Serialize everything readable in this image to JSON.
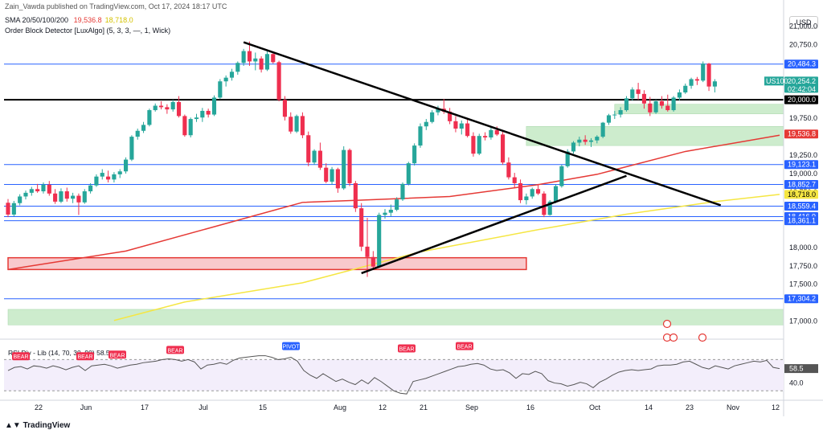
{
  "header": {
    "publisher": "Zain_Vawda published on TradingView.com, Oct 17, 2024 18:17 UTC",
    "sma_label": "SMA 20/50/100/200",
    "sma_value_1": "19,536.8",
    "sma_value_2": "18,718.0",
    "indicator_label": "Order Block Detector [LuxAlgo] (5, 3, 3, —, 1, Wick)"
  },
  "currency": "USD",
  "symbol": "US100",
  "countdown": "02:42:04",
  "footer": "TradingView",
  "colors": {
    "up": "#26a69a",
    "down": "#ef2f4f",
    "sma_red": "#e53935",
    "sma_yellow": "#f5e642",
    "level_blue": "#2962ff",
    "zone_green": "#cdeccd",
    "zone_red": "#f8c9cc",
    "rsi_line": "#555555"
  },
  "chart_data": {
    "type": "candlestick",
    "y_ticks": [
      "21,000.0",
      "20,750.0",
      "20,000.0",
      "19,750.0",
      "19,250.0",
      "19,000.0",
      "18,750.0",
      "18,000.0",
      "17,750.0",
      "17,500.0",
      "17,000.0"
    ],
    "x_ticks": [
      "22",
      "Jun",
      "17",
      "Jul",
      "15",
      "Aug",
      "12",
      "21",
      "Sep",
      "16",
      "Oct",
      "14",
      "23",
      "Nov",
      "12"
    ],
    "price_labels": [
      {
        "text": "20,484.3",
        "value": 20484.3,
        "kind": "level"
      },
      {
        "text": "20,254.2",
        "value": 20254.2,
        "kind": "last"
      },
      {
        "text": "20,000.0",
        "value": 20000.0,
        "kind": "black"
      },
      {
        "text": "19,536.8",
        "value": 19536.8,
        "kind": "sma_red"
      },
      {
        "text": "19,123.1",
        "value": 19123.1,
        "kind": "level"
      },
      {
        "text": "18,852.7",
        "value": 18852.7,
        "kind": "level"
      },
      {
        "text": "18,718.0",
        "value": 18718.0,
        "kind": "sma_yellow"
      },
      {
        "text": "18,559.4",
        "value": 18559.4,
        "kind": "level"
      },
      {
        "text": "18,416.9",
        "value": 18416.9,
        "kind": "level"
      },
      {
        "text": "18,361.1",
        "value": 18361.1,
        "kind": "level"
      },
      {
        "text": "17,304.2",
        "value": 17304.2,
        "kind": "level"
      }
    ],
    "horizontal_levels": [
      20484.3,
      19123.1,
      18852.7,
      18559.4,
      18416.9,
      18361.1,
      17304.2
    ],
    "black_level": 20000.0,
    "zones": [
      {
        "type": "green",
        "from_index": 103,
        "top": 19940,
        "bottom": 19810
      },
      {
        "type": "green",
        "from_index": 88,
        "top": 19640,
        "bottom": 19380
      },
      {
        "type": "red",
        "from_index": 0,
        "top": 17860,
        "bottom": 17700
      },
      {
        "type": "green",
        "from_index": 0,
        "top": 17160,
        "bottom": 16950
      }
    ],
    "trendlines": [
      {
        "i1": 40,
        "v1": 20780,
        "i2": 121,
        "v2": 18570
      },
      {
        "i1": 60,
        "v1": 17650,
        "i2": 105,
        "v2": 18970
      }
    ],
    "candles": [
      [
        18605,
        18655,
        18410,
        18445
      ],
      [
        18445,
        18630,
        18420,
        18600
      ],
      [
        18600,
        18720,
        18570,
        18690
      ],
      [
        18690,
        18770,
        18650,
        18740
      ],
      [
        18740,
        18820,
        18700,
        18790
      ],
      [
        18790,
        18860,
        18740,
        18760
      ],
      [
        18760,
        18880,
        18730,
        18850
      ],
      [
        18850,
        18900,
        18700,
        18730
      ],
      [
        18730,
        18790,
        18590,
        18620
      ],
      [
        18620,
        18800,
        18600,
        18760
      ],
      [
        18760,
        18810,
        18620,
        18660
      ],
      [
        18660,
        18740,
        18600,
        18700
      ],
      [
        18700,
        18730,
        18440,
        18610
      ],
      [
        18610,
        18790,
        18590,
        18760
      ],
      [
        18760,
        18870,
        18730,
        18840
      ],
      [
        18840,
        18990,
        18820,
        18960
      ],
      [
        18960,
        19060,
        18920,
        19010
      ],
      [
        18960,
        19040,
        18880,
        18920
      ],
      [
        18920,
        19020,
        18880,
        18990
      ],
      [
        18990,
        19060,
        18940,
        19030
      ],
      [
        19030,
        19220,
        19000,
        19190
      ],
      [
        19190,
        19520,
        19170,
        19500
      ],
      [
        19500,
        19610,
        19460,
        19580
      ],
      [
        19580,
        19700,
        19550,
        19660
      ],
      [
        19660,
        19880,
        19640,
        19860
      ],
      [
        19860,
        19950,
        19840,
        19920
      ],
      [
        19920,
        19980,
        19870,
        19900
      ],
      [
        19900,
        19940,
        19810,
        19870
      ],
      [
        19870,
        20000,
        19840,
        19970
      ],
      [
        19970,
        20050,
        19760,
        19780
      ],
      [
        19780,
        19800,
        19500,
        19520
      ],
      [
        19520,
        19760,
        19490,
        19740
      ],
      [
        19740,
        19810,
        19700,
        19760
      ],
      [
        19760,
        19890,
        19700,
        19850
      ],
      [
        19850,
        19880,
        19760,
        19800
      ],
      [
        19800,
        20060,
        19780,
        20030
      ],
      [
        20030,
        20280,
        20010,
        20250
      ],
      [
        20250,
        20330,
        20180,
        20300
      ],
      [
        20300,
        20420,
        20260,
        20380
      ],
      [
        20380,
        20520,
        20340,
        20500
      ],
      [
        20500,
        20690,
        20460,
        20660
      ],
      [
        20660,
        20790,
        20460,
        20520
      ],
      [
        20520,
        20640,
        20400,
        20560
      ],
      [
        20560,
        20590,
        20370,
        20410
      ],
      [
        20410,
        20660,
        20390,
        20620
      ],
      [
        20620,
        20630,
        20490,
        20510
      ],
      [
        20510,
        20530,
        19980,
        20000
      ],
      [
        20000,
        20050,
        19720,
        19770
      ],
      [
        19770,
        19830,
        19540,
        19570
      ],
      [
        19570,
        19800,
        19550,
        19780
      ],
      [
        19780,
        19830,
        19480,
        19520
      ],
      [
        19520,
        19570,
        19100,
        19150
      ],
      [
        19150,
        19330,
        19120,
        19310
      ],
      [
        19310,
        19420,
        19050,
        19080
      ],
      [
        19080,
        19140,
        18870,
        18890
      ],
      [
        18890,
        19090,
        18850,
        19060
      ],
      [
        19060,
        19080,
        18740,
        18800
      ],
      [
        18800,
        19370,
        18780,
        19320
      ],
      [
        19320,
        19340,
        18830,
        18870
      ],
      [
        18870,
        18900,
        18480,
        18530
      ],
      [
        18530,
        18600,
        17950,
        18010
      ],
      [
        18010,
        18400,
        17600,
        17870
      ],
      [
        17870,
        17950,
        17700,
        17740
      ],
      [
        17740,
        18470,
        17720,
        18440
      ],
      [
        18440,
        18520,
        18390,
        18470
      ],
      [
        18470,
        18580,
        18420,
        18510
      ],
      [
        18510,
        18680,
        18490,
        18650
      ],
      [
        18650,
        18880,
        18630,
        18860
      ],
      [
        18860,
        19160,
        18840,
        19140
      ],
      [
        19140,
        19410,
        19110,
        19380
      ],
      [
        19380,
        19680,
        19350,
        19640
      ],
      [
        19640,
        19740,
        19590,
        19700
      ],
      [
        19700,
        19860,
        19680,
        19830
      ],
      [
        19830,
        19920,
        19790,
        19880
      ],
      [
        19880,
        20010,
        19810,
        19840
      ],
      [
        19840,
        19890,
        19670,
        19710
      ],
      [
        19710,
        19780,
        19560,
        19610
      ],
      [
        19610,
        19720,
        19530,
        19680
      ],
      [
        19680,
        19750,
        19490,
        19510
      ],
      [
        19510,
        19560,
        19230,
        19270
      ],
      [
        19270,
        19540,
        19250,
        19510
      ],
      [
        19510,
        19560,
        19450,
        19490
      ],
      [
        19490,
        19620,
        19460,
        19590
      ],
      [
        19590,
        19640,
        19510,
        19530
      ],
      [
        19530,
        19570,
        19120,
        19150
      ],
      [
        19150,
        19220,
        18920,
        18950
      ],
      [
        18950,
        19010,
        18800,
        18870
      ],
      [
        18870,
        18920,
        18600,
        18640
      ],
      [
        18640,
        18730,
        18580,
        18690
      ],
      [
        18690,
        18810,
        18660,
        18790
      ],
      [
        18790,
        18860,
        18710,
        18730
      ],
      [
        18730,
        18760,
        18410,
        18440
      ],
      [
        18440,
        18640,
        18430,
        18620
      ],
      [
        18620,
        18850,
        18600,
        18830
      ],
      [
        18830,
        19120,
        18810,
        19100
      ],
      [
        19100,
        19330,
        19080,
        19300
      ],
      [
        19300,
        19440,
        19270,
        19420
      ],
      [
        19420,
        19500,
        19370,
        19460
      ],
      [
        19460,
        19520,
        19390,
        19430
      ],
      [
        19430,
        19480,
        19360,
        19450
      ],
      [
        19450,
        19520,
        19410,
        19500
      ],
      [
        19500,
        19700,
        19480,
        19690
      ],
      [
        19690,
        19810,
        19660,
        19790
      ],
      [
        19790,
        19850,
        19740,
        19800
      ],
      [
        19800,
        19900,
        19760,
        19860
      ],
      [
        19860,
        20050,
        19840,
        20020
      ],
      [
        20020,
        20170,
        19990,
        20140
      ],
      [
        20140,
        20230,
        20000,
        20080
      ],
      [
        20080,
        20130,
        19880,
        19950
      ],
      [
        19950,
        20040,
        19780,
        19830
      ],
      [
        19830,
        20000,
        19810,
        19980
      ],
      [
        19980,
        20050,
        19880,
        19920
      ],
      [
        19920,
        20070,
        19840,
        19860
      ],
      [
        19860,
        20050,
        19840,
        20030
      ],
      [
        20030,
        20140,
        19990,
        20100
      ],
      [
        20100,
        20220,
        20080,
        20190
      ],
      [
        20190,
        20300,
        20150,
        20280
      ],
      [
        20280,
        20310,
        20200,
        20260
      ],
      [
        20260,
        20520,
        20240,
        20490
      ],
      [
        20490,
        20500,
        20120,
        20180
      ],
      [
        20180,
        20280,
        20100,
        20250
      ]
    ],
    "sma_red": [
      [
        0,
        17700
      ],
      [
        20,
        17950
      ],
      [
        50,
        18610
      ],
      [
        60,
        18640
      ],
      [
        75,
        18690
      ],
      [
        90,
        18850
      ],
      [
        100,
        18990
      ],
      [
        115,
        19300
      ],
      [
        131,
        19520
      ]
    ],
    "sma_yellow": [
      [
        18,
        17010
      ],
      [
        30,
        17260
      ],
      [
        50,
        17520
      ],
      [
        70,
        17940
      ],
      [
        90,
        18240
      ],
      [
        105,
        18450
      ],
      [
        120,
        18620
      ],
      [
        131,
        18718
      ]
    ],
    "rsi": {
      "title": "RSI Div - Lib (14, 70, 30, 90)",
      "value": "58.5",
      "ticks": [
        "60.0",
        "40.0"
      ],
      "upper": 70,
      "lower": 30,
      "series": [
        56,
        60,
        61,
        58,
        62,
        61,
        59,
        62,
        60,
        57,
        60,
        62,
        56,
        62,
        63,
        64,
        62,
        59,
        61,
        63,
        64,
        66,
        67,
        68,
        70,
        71,
        70,
        68,
        70,
        67,
        58,
        63,
        64,
        66,
        64,
        69,
        72,
        73,
        74,
        75,
        75,
        73,
        70,
        71,
        73,
        68,
        56,
        50,
        46,
        52,
        47,
        42,
        45,
        41,
        38,
        44,
        39,
        47,
        42,
        36,
        30,
        27,
        26,
        42,
        44,
        46,
        49,
        52,
        55,
        58,
        61,
        62,
        64,
        65,
        63,
        58,
        56,
        57,
        53,
        46,
        52,
        51,
        55,
        52,
        43,
        40,
        39,
        36,
        38,
        41,
        39,
        34,
        41,
        45,
        50,
        54,
        56,
        57,
        56,
        57,
        58,
        62,
        63,
        63,
        64,
        67,
        68,
        64,
        60,
        58,
        62,
        60,
        58,
        62,
        64,
        66,
        68,
        67,
        69,
        60,
        58.5
      ],
      "markers": [
        {
          "label": "BEAR",
          "index": 2,
          "value": 62
        },
        {
          "label": "BEAR",
          "index": 12,
          "value": 62
        },
        {
          "label": "BEAR",
          "index": 17,
          "value": 64
        },
        {
          "label": "BEAR",
          "index": 26,
          "value": 70
        },
        {
          "label": "PIVOT",
          "index": 44,
          "value": 75
        },
        {
          "label": "BEAR",
          "index": 62,
          "value": 72
        },
        {
          "label": "BEAR",
          "index": 71,
          "value": 75
        }
      ]
    }
  }
}
